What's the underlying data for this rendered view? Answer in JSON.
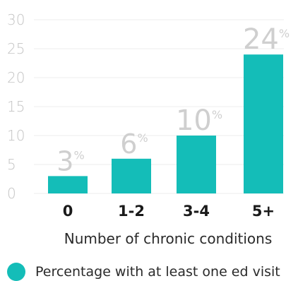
{
  "chart_data": {
    "type": "bar",
    "categories": [
      "0",
      "1-2",
      "3-4",
      "5+"
    ],
    "series": [
      {
        "name": "Percentage with at least one ed visit",
        "values": [
          3,
          6,
          10,
          24
        ],
        "labels": [
          "3%",
          "6%",
          "10%",
          "24%"
        ]
      }
    ],
    "yticks": [
      "0",
      "5",
      "10",
      "15",
      "20",
      "25",
      "30"
    ],
    "ylim": [
      0,
      30
    ],
    "xlabel": "Number of chronic conditions",
    "ylabel": "",
    "grid": true,
    "legend": "bottom-left",
    "bar_color": "#14bdb8"
  }
}
